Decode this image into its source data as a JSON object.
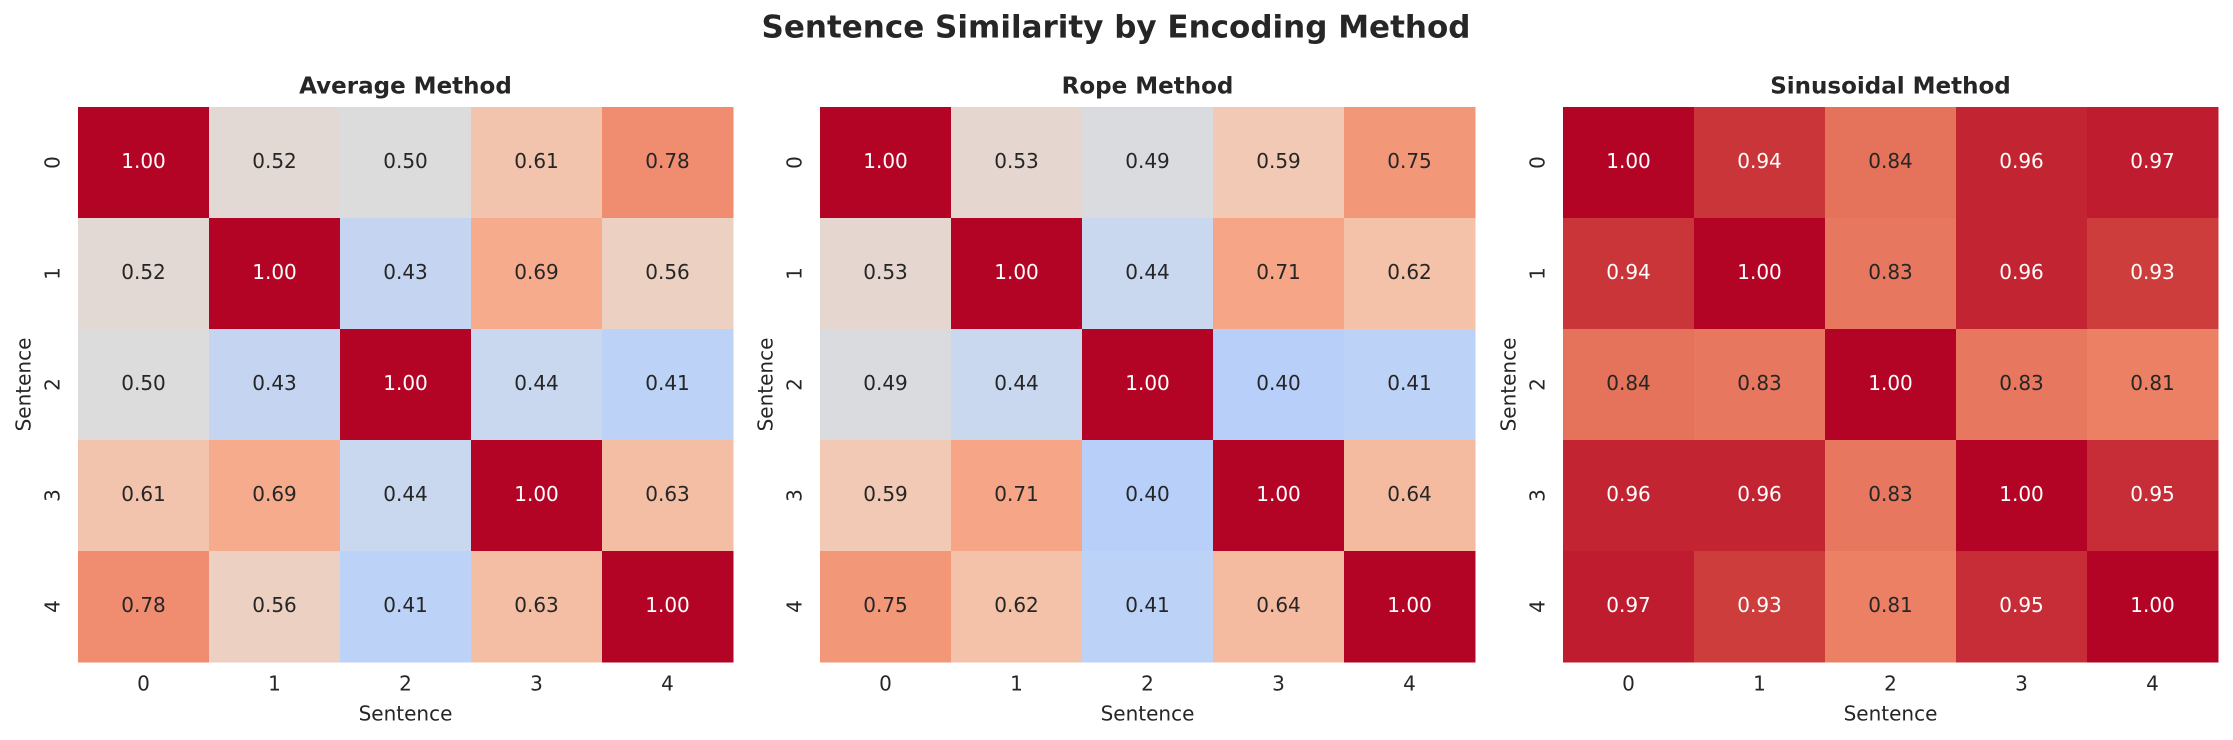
{
  "title": "Sentence Similarity by Encoding Method",
  "chart_data": [
    {
      "type": "heatmap",
      "title": "Average Method",
      "xlabel": "Sentence",
      "ylabel": "Sentence",
      "x_categories": [
        "0",
        "1",
        "2",
        "3",
        "4"
      ],
      "y_categories": [
        "0",
        "1",
        "2",
        "3",
        "4"
      ],
      "colormap": "coolwarm",
      "vlim": [
        0,
        1
      ],
      "values": [
        [
          1.0,
          0.52,
          0.5,
          0.61,
          0.78
        ],
        [
          0.52,
          1.0,
          0.43,
          0.69,
          0.56
        ],
        [
          0.5,
          0.43,
          1.0,
          0.44,
          0.41
        ],
        [
          0.61,
          0.69,
          0.44,
          1.0,
          0.63
        ],
        [
          0.78,
          0.56,
          0.41,
          0.63,
          1.0
        ]
      ],
      "value_labels": [
        [
          "1.00",
          "0.52",
          "0.50",
          "0.61",
          "0.78"
        ],
        [
          "0.52",
          "1.00",
          "0.43",
          "0.69",
          "0.56"
        ],
        [
          "0.50",
          "0.43",
          "1.00",
          "0.44",
          "0.41"
        ],
        [
          "0.61",
          "0.69",
          "0.44",
          "1.00",
          "0.63"
        ],
        [
          "0.78",
          "0.56",
          "0.41",
          "0.63",
          "1.00"
        ]
      ]
    },
    {
      "type": "heatmap",
      "title": "Rope Method",
      "xlabel": "Sentence",
      "ylabel": "Sentence",
      "x_categories": [
        "0",
        "1",
        "2",
        "3",
        "4"
      ],
      "y_categories": [
        "0",
        "1",
        "2",
        "3",
        "4"
      ],
      "colormap": "coolwarm",
      "vlim": [
        0,
        1
      ],
      "values": [
        [
          1.0,
          0.53,
          0.49,
          0.59,
          0.75
        ],
        [
          0.53,
          1.0,
          0.44,
          0.71,
          0.62
        ],
        [
          0.49,
          0.44,
          1.0,
          0.4,
          0.41
        ],
        [
          0.59,
          0.71,
          0.4,
          1.0,
          0.64
        ],
        [
          0.75,
          0.62,
          0.41,
          0.64,
          1.0
        ]
      ],
      "value_labels": [
        [
          "1.00",
          "0.53",
          "0.49",
          "0.59",
          "0.75"
        ],
        [
          "0.53",
          "1.00",
          "0.44",
          "0.71",
          "0.62"
        ],
        [
          "0.49",
          "0.44",
          "1.00",
          "0.40",
          "0.41"
        ],
        [
          "0.59",
          "0.71",
          "0.40",
          "1.00",
          "0.64"
        ],
        [
          "0.75",
          "0.62",
          "0.41",
          "0.64",
          "1.00"
        ]
      ]
    },
    {
      "type": "heatmap",
      "title": "Sinusoidal Method",
      "xlabel": "Sentence",
      "ylabel": "Sentence",
      "x_categories": [
        "0",
        "1",
        "2",
        "3",
        "4"
      ],
      "y_categories": [
        "0",
        "1",
        "2",
        "3",
        "4"
      ],
      "colormap": "coolwarm",
      "vlim": [
        0,
        1
      ],
      "values": [
        [
          1.0,
          0.94,
          0.84,
          0.96,
          0.97
        ],
        [
          0.94,
          1.0,
          0.83,
          0.96,
          0.93
        ],
        [
          0.84,
          0.83,
          1.0,
          0.83,
          0.81
        ],
        [
          0.96,
          0.96,
          0.83,
          1.0,
          0.95
        ],
        [
          0.97,
          0.93,
          0.81,
          0.95,
          1.0
        ]
      ],
      "value_labels": [
        [
          "1.00",
          "0.94",
          "0.84",
          "0.96",
          "0.97"
        ],
        [
          "0.94",
          "1.00",
          "0.83",
          "0.96",
          "0.93"
        ],
        [
          "0.84",
          "0.83",
          "1.00",
          "0.83",
          "0.81"
        ],
        [
          "0.96",
          "0.96",
          "0.83",
          "1.00",
          "0.95"
        ],
        [
          "0.97",
          "0.93",
          "0.81",
          "0.95",
          "1.00"
        ]
      ]
    }
  ]
}
